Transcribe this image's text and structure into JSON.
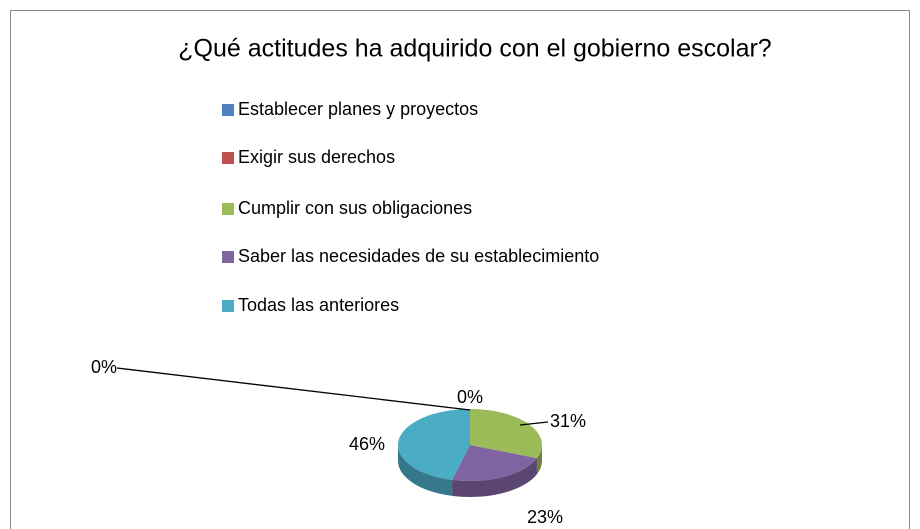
{
  "chart_data": {
    "type": "pie",
    "title": "¿Qué actitudes ha adquirido con el gobierno escolar?",
    "categories": [
      "Establecer planes y proyectos",
      "Exigir sus derechos",
      "Cumplir con sus obligaciones",
      "Saber las necesidades de su establecimiento",
      "Todas las anteriores"
    ],
    "values": [
      0,
      0,
      31,
      23,
      46
    ],
    "value_labels": [
      "0%",
      "0%",
      "31%",
      "23%",
      "46%"
    ],
    "colors": [
      "#4f81bd",
      "#c0504d",
      "#9bbb59",
      "#8064a2",
      "#4bacc6"
    ],
    "legend": "top"
  }
}
